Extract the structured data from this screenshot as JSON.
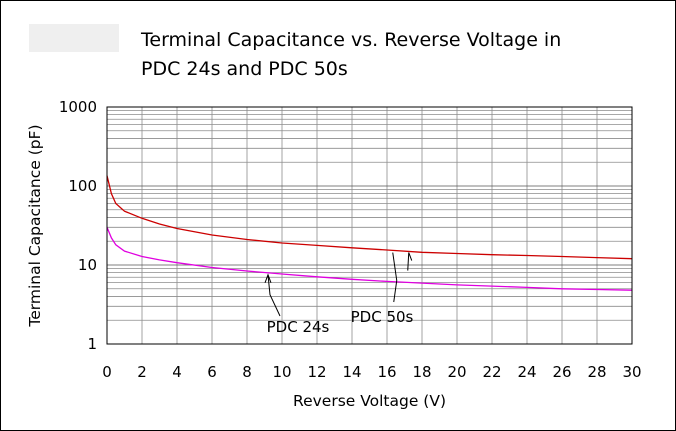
{
  "chart_data": {
    "type": "line",
    "title": "Terminal Capacitance vs. Reverse Voltage in PDC 24s and PDC 50s",
    "title_lines": [
      "Terminal Capacitance vs. Reverse Voltage in",
      "PDC 24s and PDC 50s"
    ],
    "xlabel": "Reverse Voltage (V)",
    "ylabel": "Terminal Capacitance (pF)",
    "xlim": [
      0,
      30
    ],
    "ylim": [
      1,
      1000
    ],
    "yscale": "log",
    "grid": true,
    "x_ticks": [
      "0",
      "2",
      "4",
      "6",
      "8",
      "10",
      "12",
      "14",
      "16",
      "18",
      "20",
      "22",
      "24",
      "26",
      "28",
      "30"
    ],
    "y_ticks": [
      "1",
      "10",
      "100",
      "1000"
    ],
    "series": [
      {
        "name": "PDC 50s",
        "color": "#cc0000",
        "x": [
          0,
          0.25,
          0.5,
          1,
          2,
          3,
          4,
          6,
          8,
          10,
          12,
          14,
          16,
          18,
          20,
          22,
          24,
          26,
          28,
          30
        ],
        "y": [
          135,
          80,
          60,
          48,
          39,
          33,
          29,
          24,
          21,
          19,
          17.7,
          16.5,
          15.5,
          14.5,
          14,
          13.5,
          13.2,
          12.8,
          12.4,
          12
        ]
      },
      {
        "name": "PDC 24s",
        "color": "#e000e0",
        "x": [
          0,
          0.25,
          0.5,
          1,
          2,
          3,
          4,
          6,
          8,
          10,
          12,
          14,
          16,
          18,
          20,
          22,
          24,
          26,
          28,
          30
        ],
        "y": [
          30,
          22,
          18,
          15,
          12.8,
          11.6,
          10.7,
          9.3,
          8.4,
          7.7,
          7.1,
          6.6,
          6.2,
          5.9,
          5.6,
          5.4,
          5.2,
          5,
          4.9,
          4.8
        ]
      }
    ],
    "annotations": [
      {
        "text": "PDC 24s",
        "series": "PDC 24s",
        "x": 9.2
      },
      {
        "text": "PDC 50s",
        "series": "PDC 50s",
        "x": 16.5
      }
    ]
  }
}
